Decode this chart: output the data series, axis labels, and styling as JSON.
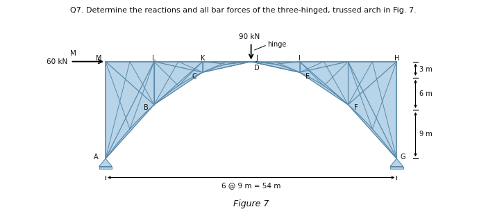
{
  "title": "Q7. Determine the reactions and all bar forces of the three-hinged, trussed arch in Fig. 7.",
  "figure_label": "Figure 7",
  "span_label": "6 @ 9 m = 54 m",
  "load_90kN": "90 kN",
  "load_60kN": "60 kN",
  "load_60kN_M": "M",
  "hinge_label": "hinge",
  "dim_3m": "3 m",
  "dim_6m": "6 m",
  "dim_9m": "9 m",
  "bg_color": "#ffffff",
  "truss_fill": "#b8d4e8",
  "truss_edge": "#5a8aaa",
  "support_fill": "#b8d4e8",
  "dim_color": "#222222",
  "text_color": "#111111"
}
